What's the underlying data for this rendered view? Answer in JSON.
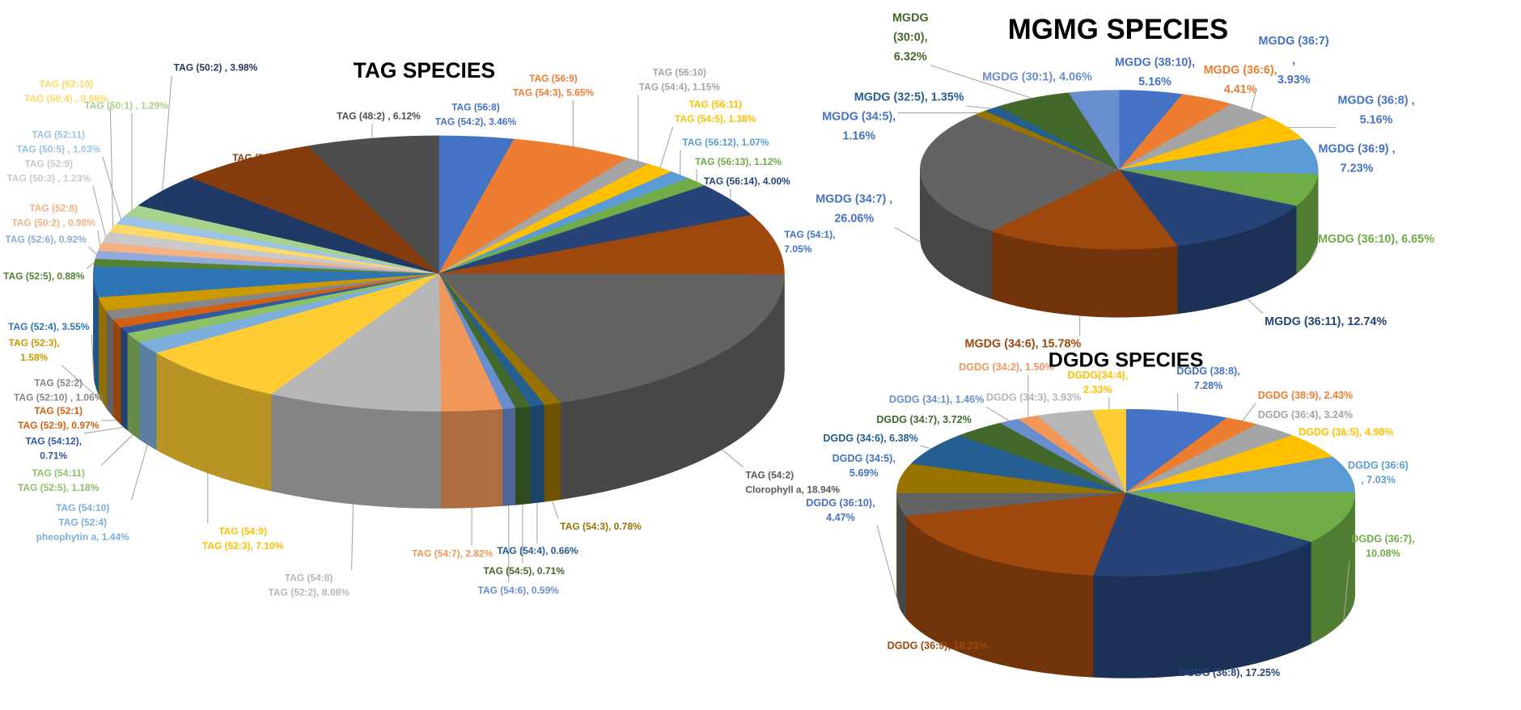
{
  "chart_data": [
    {
      "type": "pie",
      "style": "3d",
      "title": "TAG SPECIES",
      "slices": [
        {
          "lines": [
            "TAG (56:8)",
            "TAG (54:2), 3.46%"
          ],
          "value": 3.46,
          "color": "#4472C4",
          "label_color": "#4472C4"
        },
        {
          "lines": [
            "TAG (56:9)",
            "TAG (54:3), 5.65%"
          ],
          "value": 5.65,
          "color": "#ED7D31",
          "label_color": "#ED7D31"
        },
        {
          "lines": [
            "TAG (56:10)",
            "TAG (54:4), 1.15%"
          ],
          "value": 1.15,
          "color": "#A5A5A5",
          "label_color": "#A5A5A5"
        },
        {
          "lines": [
            "TAG (56:11)",
            "TAG (54:5), 1.38%"
          ],
          "value": 1.38,
          "color": "#FFC000",
          "label_color": "#FFC000"
        },
        {
          "lines": [
            "TAG (56:12), 1.07%"
          ],
          "value": 1.07,
          "color": "#5B9BD5",
          "label_color": "#5B9BD5"
        },
        {
          "lines": [
            "TAG (56:13), 1.12%"
          ],
          "value": 1.12,
          "color": "#70AD47",
          "label_color": "#70AD47"
        },
        {
          "lines": [
            "TAG (56:14), 4.00%"
          ],
          "value": 4.0,
          "color": "#264478",
          "label_color": "#264478"
        },
        {
          "lines": [
            "TAG (54:1),",
            "7.05%"
          ],
          "value": 7.05,
          "color": "#9E480E",
          "label_color": "#4472C4"
        },
        {
          "lines": [
            "TAG (54:2)",
            "Clorophyll a, 18.94%"
          ],
          "value": 18.94,
          "color": "#636363",
          "label_color": "#595959"
        },
        {
          "lines": [
            "TAG (54:3), 0.78%"
          ],
          "value": 0.78,
          "color": "#997300",
          "label_color": "#997300"
        },
        {
          "lines": [
            "TAG (54:4), 0.66%"
          ],
          "value": 0.66,
          "color": "#255E91",
          "label_color": "#255E91"
        },
        {
          "lines": [
            "TAG (54:5), 0.71%"
          ],
          "value": 0.71,
          "color": "#43682B",
          "label_color": "#43682B"
        },
        {
          "lines": [
            "TAG (54:6), 0.59%"
          ],
          "value": 0.59,
          "color": "#698ED0",
          "label_color": "#698ED0"
        },
        {
          "lines": [
            "TAG (54:7), 2.82%"
          ],
          "value": 2.82,
          "color": "#F1975A",
          "label_color": "#F1975A"
        },
        {
          "lines": [
            "TAG (54:8)",
            "TAG (52:2), 8.08%"
          ],
          "value": 8.08,
          "color": "#B7B7B7",
          "label_color": "#B7B7B7"
        },
        {
          "lines": [
            "TAG (54:9)",
            "TAG (52:3), 7.10%"
          ],
          "value": 7.1,
          "color": "#FFCD33",
          "label_color": "#FFC000"
        },
        {
          "lines": [
            "TAG (54:10)",
            "TAG (52:4)",
            "pheophytin a, 1.44%"
          ],
          "value": 1.44,
          "color": "#7CAFDD",
          "label_color": "#7CAFDD"
        },
        {
          "lines": [
            "TAG (54:11)",
            "TAG (52:5), 1.18%"
          ],
          "value": 1.18,
          "color": "#8CC168",
          "label_color": "#8CC168"
        },
        {
          "lines": [
            "TAG (54:12),",
            "0.71%"
          ],
          "value": 0.71,
          "color": "#335AA1",
          "label_color": "#335AA1"
        },
        {
          "lines": [
            "TAG (52:1)",
            "TAG (52:9), 0.97%"
          ],
          "value": 0.97,
          "color": "#D26012",
          "label_color": "#D26012"
        },
        {
          "lines": [
            "TAG (52:2)",
            "TAG (52:10) , 1.06%"
          ],
          "value": 1.06,
          "color": "#878787",
          "label_color": "#878787"
        },
        {
          "lines": [
            "TAG (52:3),",
            "1.58%"
          ],
          "value": 1.58,
          "color": "#CC9A00",
          "label_color": "#CC9A00"
        },
        {
          "lines": [
            "TAG (52:4), 3.55%"
          ],
          "value": 3.55,
          "color": "#2E75B6",
          "label_color": "#2E75B6"
        },
        {
          "lines": [
            "TAG (52:5), 0.88%"
          ],
          "value": 0.88,
          "color": "#548235",
          "label_color": "#548235"
        },
        {
          "lines": [
            "TAG (52:6), 0.92%"
          ],
          "value": 0.92,
          "color": "#8FAADC",
          "label_color": "#8FAADC"
        },
        {
          "lines": [
            "TAG (52:8)",
            "TAG (50:2) , 0.98%"
          ],
          "value": 0.98,
          "color": "#F4B183",
          "label_color": "#F4B183"
        },
        {
          "lines": [
            "TAG (52:9)",
            "TAG (50:3) , 1.23%"
          ],
          "value": 1.23,
          "color": "#C9C9C9",
          "label_color": "#C9C9C9"
        },
        {
          "lines": [
            "TAG (52:10)",
            "TAG (50:4) , 0.98%"
          ],
          "value": 0.98,
          "color": "#FFD966",
          "label_color": "#FFD966"
        },
        {
          "lines": [
            "TAG (52:11)",
            "TAG (50:5) , 1.03%"
          ],
          "value": 1.03,
          "color": "#9DC3E6",
          "label_color": "#9DC3E6"
        },
        {
          "lines": [
            "TAG (50:1) , 1.29%"
          ],
          "value": 1.29,
          "color": "#A9D18E",
          "label_color": "#A9D18E"
        },
        {
          "lines": [
            "TAG (50:2) , 3.98%"
          ],
          "value": 3.98,
          "color": "#203864",
          "label_color": "#203864"
        },
        {
          "lines": [
            "TAG (50:11) , 6.49%"
          ],
          "value": 6.49,
          "color": "#843C0C",
          "label_color": "#843C0C"
        },
        {
          "lines": [
            "TAG (48:2) , 6.12%"
          ],
          "value": 6.12,
          "color": "#4D4D4D",
          "label_color": "#4D4D4D"
        }
      ]
    },
    {
      "type": "pie",
      "style": "3d",
      "title": "MGMG SPECIES",
      "slices": [
        {
          "lines": [
            "MGDG (38:10),",
            "5.16%"
          ],
          "value": 5.16,
          "color": "#4472C4",
          "label_color": "#4472C4"
        },
        {
          "lines": [
            "MGDG (36:6),",
            "4.41%"
          ],
          "value": 4.41,
          "color": "#ED7D31",
          "label_color": "#ED7D31"
        },
        {
          "lines": [
            "MGDG (36:7)",
            ",",
            "3.93%"
          ],
          "value": 3.93,
          "color": "#A5A5A5",
          "label_color": "#4472C4"
        },
        {
          "lines": [
            "MGDG (36:8)  ,",
            "5.16%"
          ],
          "value": 5.16,
          "color": "#FFC000",
          "label_color": "#4472C4"
        },
        {
          "lines": [
            "MGDG (36:9)  ,",
            "7.23%"
          ],
          "value": 7.23,
          "color": "#5B9BD5",
          "label_color": "#4472C4"
        },
        {
          "lines": [
            "MGDG (36:10), 6.65%"
          ],
          "value": 6.65,
          "color": "#70AD47",
          "label_color": "#70AD47"
        },
        {
          "lines": [
            "MGDG (36:11), 12.74%"
          ],
          "value": 12.74,
          "color": "#264478",
          "label_color": "#264478"
        },
        {
          "lines": [
            "MGDG (34:6), 15.78%"
          ],
          "value": 15.78,
          "color": "#9E480E",
          "label_color": "#9E480E"
        },
        {
          "lines": [
            "MGDG (34:7) ,",
            "26.06%"
          ],
          "value": 26.06,
          "color": "#636363",
          "label_color": "#4472C4"
        },
        {
          "lines": [
            "MGDG (34:5),",
            "1.16%"
          ],
          "value": 1.16,
          "color": "#997300",
          "label_color": "#4472C4"
        },
        {
          "lines": [
            "MGDG (32:5), 1.35%"
          ],
          "value": 1.35,
          "color": "#255E91",
          "label_color": "#255E91"
        },
        {
          "lines": [
            "MGDG",
            "(30:0),",
            "6.32%"
          ],
          "value": 6.32,
          "color": "#43682B",
          "label_color": "#43682B"
        },
        {
          "lines": [
            "MGDG (30:1), 4.06%"
          ],
          "value": 4.06,
          "color": "#698ED0",
          "label_color": "#698ED0"
        }
      ]
    },
    {
      "type": "pie",
      "style": "3d",
      "title": "DGDG SPECIES",
      "slices": [
        {
          "lines": [
            "DGDG (38:8),",
            "7.28%"
          ],
          "value": 7.28,
          "color": "#4472C4",
          "label_color": "#4472C4"
        },
        {
          "lines": [
            "DGDG (38:9), 2.43%"
          ],
          "value": 2.43,
          "color": "#ED7D31",
          "label_color": "#ED7D31"
        },
        {
          "lines": [
            "DGDG (36:4), 3.24%"
          ],
          "value": 3.24,
          "color": "#A5A5A5",
          "label_color": "#A5A5A5"
        },
        {
          "lines": [
            "DGDG (36:5), 4.98%"
          ],
          "value": 4.98,
          "color": "#FFC000",
          "label_color": "#FFC000"
        },
        {
          "lines": [
            "DGDG (36:6)",
            ", 7.03%"
          ],
          "value": 7.03,
          "color": "#5B9BD5",
          "label_color": "#5B9BD5"
        },
        {
          "lines": [
            "DGDG (36:7),",
            "10.08%"
          ],
          "value": 10.08,
          "color": "#70AD47",
          "label_color": "#70AD47"
        },
        {
          "lines": [
            "DGDG (36:8), 17.25%"
          ],
          "value": 17.25,
          "color": "#264478",
          "label_color": "#264478"
        },
        {
          "lines": [
            "DGDG (36:9), 18.23%"
          ],
          "value": 18.23,
          "color": "#9E480E",
          "label_color": "#9E480E"
        },
        {
          "lines": [
            "DGDG (36:10),",
            "4.47%"
          ],
          "value": 4.47,
          "color": "#636363",
          "label_color": "#4472C4"
        },
        {
          "lines": [
            "DGDG (34:5),",
            "5.69%"
          ],
          "value": 5.69,
          "color": "#997300",
          "label_color": "#4472C4"
        },
        {
          "lines": [
            "DGDG (34:6), 6.38%"
          ],
          "value": 6.38,
          "color": "#255E91",
          "label_color": "#255E91"
        },
        {
          "lines": [
            "DGDG (34:7), 3.72%"
          ],
          "value": 3.72,
          "color": "#43682B",
          "label_color": "#43682B"
        },
        {
          "lines": [
            "DGDG (34:1), 1.46%"
          ],
          "value": 1.46,
          "color": "#698ED0",
          "label_color": "#698ED0"
        },
        {
          "lines": [
            "DGDG (34:2), 1.50%"
          ],
          "value": 1.5,
          "color": "#F1975A",
          "label_color": "#F1975A"
        },
        {
          "lines": [
            "DGDG (34:3), 3.93%"
          ],
          "value": 3.93,
          "color": "#B7B7B7",
          "label_color": "#B7B7B7"
        },
        {
          "lines": [
            "DGDG(34:4),",
            "2.33%"
          ],
          "value": 2.33,
          "color": "#FFCD33",
          "label_color": "#FFC000"
        }
      ]
    }
  ]
}
